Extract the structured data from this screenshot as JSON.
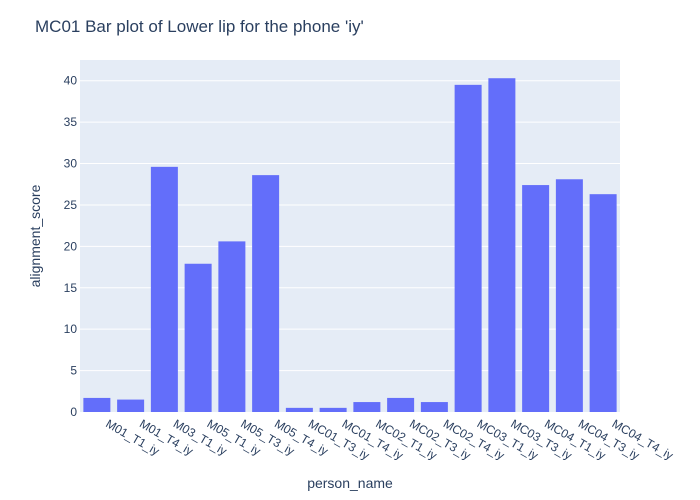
{
  "chart_data": {
    "type": "bar",
    "title": "MC01 Bar plot of Lower lip for the phone 'iy'",
    "xlabel": "person_name",
    "ylabel": "alignment_score",
    "ylim": [
      0,
      42.5
    ],
    "yticks": [
      0,
      5,
      10,
      15,
      20,
      25,
      30,
      35,
      40
    ],
    "grid": true,
    "colors": {
      "bar": "#636efa",
      "plot_bg": "#e5ecf6",
      "text": "#2a3f5f"
    },
    "categories": [
      "M01_T1_iy",
      "M01_T4_iy",
      "M03_T1_iy",
      "M05_T1_iy",
      "M05_T3_iy",
      "M05_T4_iy",
      "MC01_T3_iy",
      "MC01_T4_iy",
      "MC02_T1_iy",
      "MC02_T3_iy",
      "MC02_T4_iy",
      "MC03_T1_iy",
      "MC03_T3_iy",
      "MC04_T1_iy",
      "MC04_T3_iy",
      "MC04_T4_iy"
    ],
    "values": [
      1.7,
      1.5,
      29.6,
      17.9,
      20.6,
      28.6,
      0.5,
      0.5,
      1.2,
      1.7,
      1.2,
      39.5,
      40.3,
      27.4,
      28.1,
      26.3
    ]
  }
}
